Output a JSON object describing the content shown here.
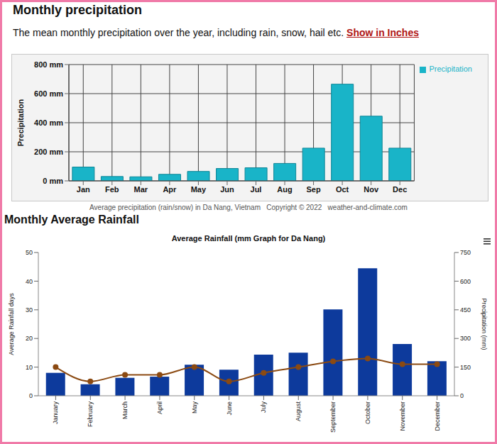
{
  "chart_data": [
    {
      "type": "bar",
      "title": "Monthly precipitation",
      "subtitle": "The mean monthly precipitation over the year, including rain, snow, hail etc.",
      "annotations": [
        "Show in Inches",
        "Average precipitation (rain/snow) in Da Nang, Vietnam   Copyright © 2022   weather-and-climate.com"
      ],
      "y_label": "Precipitation",
      "categories": [
        "Jan",
        "Feb",
        "Mar",
        "Apr",
        "May",
        "Jun",
        "Jul",
        "Aug",
        "Sep",
        "Oct",
        "Nov",
        "Dec"
      ],
      "series": [
        {
          "name": "Precipitation",
          "color": "#19b4c8",
          "type": "bar",
          "values": [
            95,
            30,
            28,
            45,
            65,
            85,
            90,
            120,
            225,
            665,
            445,
            225
          ]
        }
      ],
      "ylim": [
        0,
        800
      ],
      "yticks": [
        {
          "value": 0,
          "label": "0 mm"
        },
        {
          "value": 200,
          "label": "200 mm"
        },
        {
          "value": 400,
          "label": "400 mm"
        },
        {
          "value": 600,
          "label": "600 mm"
        },
        {
          "value": 800,
          "label": "800 mm"
        }
      ],
      "grid": true,
      "legend": "top-right"
    },
    {
      "type": "bar",
      "title": "Monthly Average Rainfall",
      "subtitle": "Average Rainfall (mm Graph for Da Nang)",
      "y_label": "Average Rainfall days",
      "y2_label": "Precipitation (mm)",
      "categories": [
        "January",
        "February",
        "March",
        "April",
        "May",
        "June",
        "July",
        "August",
        "September",
        "October",
        "November",
        "December"
      ],
      "series": [
        {
          "type": "bar",
          "axis": "y2",
          "color": "#0d3a9c",
          "values": [
            120,
            60,
            94,
            100,
            162,
            136,
            215,
            226,
            452,
            667,
            271,
            181
          ]
        },
        {
          "type": "line",
          "axis": "y",
          "color": "#8b4a12",
          "marker": "circle",
          "values": [
            10,
            5,
            7.3,
            7.3,
            10,
            5,
            8,
            10,
            12,
            13,
            11,
            11
          ]
        }
      ],
      "ylim": [
        0,
        50
      ],
      "yticks": [
        0,
        10,
        20,
        30,
        40,
        50
      ],
      "y2lim": [
        0,
        750
      ],
      "y2ticks": [
        0,
        150,
        300,
        450,
        600,
        750
      ],
      "grid": false
    }
  ]
}
